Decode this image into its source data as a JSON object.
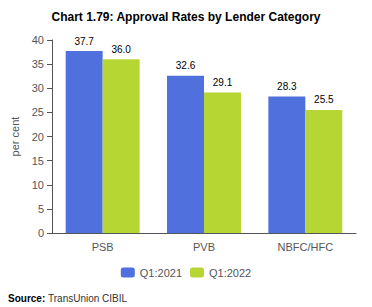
{
  "chart_data": {
    "type": "bar",
    "title": "Chart 1.79: Approval Rates by Lender Category",
    "categories": [
      "PSB",
      "PVB",
      "NBFC/HFC"
    ],
    "series": [
      {
        "name": "Q1:2021",
        "values": [
          37.7,
          32.6,
          28.3
        ],
        "value_labels": [
          "37.7",
          "32.6",
          "28.3"
        ]
      },
      {
        "name": "Q1:2022",
        "values": [
          36.0,
          29.1,
          25.5
        ],
        "value_labels": [
          "36.0",
          "29.1",
          "25.5"
        ]
      }
    ],
    "ylabel": "per cent",
    "ylim": [
      0,
      40
    ],
    "yticks": [
      0,
      5,
      10,
      15,
      20,
      25,
      30,
      35,
      40
    ],
    "grid": false,
    "legend": "bottom",
    "data_labels": true,
    "annotations": [
      "Source:",
      "TransUnion CIBIL"
    ]
  }
}
